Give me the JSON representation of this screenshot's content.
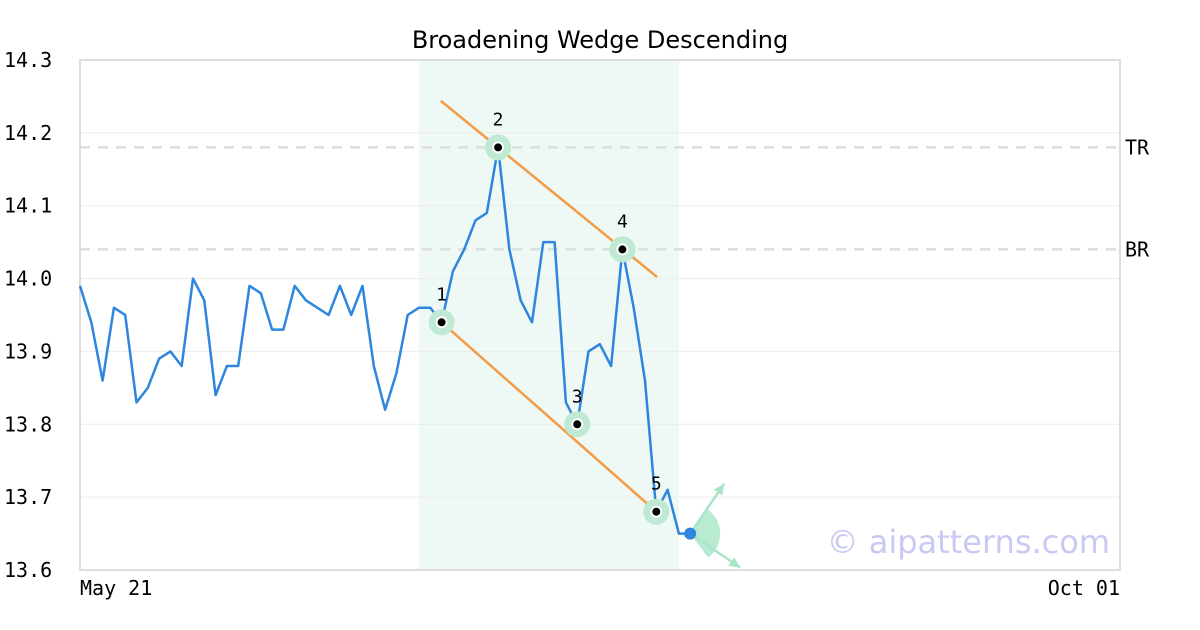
{
  "chart_data": {
    "type": "line",
    "title": "Broadening Wedge Descending",
    "ylim": [
      13.6,
      14.3
    ],
    "y_ticks": [
      "14.3",
      "14.2",
      "14.1",
      "14.0",
      "13.9",
      "13.8",
      "13.7",
      "13.6"
    ],
    "x_tick_labels": [
      "May 21",
      "Oct 01"
    ],
    "grid": true,
    "series": [
      {
        "color": "#2e86de",
        "values": [
          13.99,
          13.94,
          13.86,
          13.96,
          13.95,
          13.83,
          13.85,
          13.89,
          13.9,
          13.88,
          14.0,
          13.97,
          13.84,
          13.88,
          13.88,
          13.99,
          13.98,
          13.93,
          13.93,
          13.99,
          13.97,
          13.96,
          13.95,
          13.99,
          13.95,
          13.99,
          13.88,
          13.82,
          13.87,
          13.95,
          13.96,
          13.96,
          13.94,
          14.01,
          14.04,
          14.08,
          14.09,
          14.18,
          14.04,
          13.97,
          13.94,
          14.05,
          14.05,
          13.83,
          13.8,
          13.9,
          13.91,
          13.88,
          14.04,
          13.96,
          13.86,
          13.68,
          13.71,
          13.65,
          13.65
        ]
      }
    ],
    "reference_lines": [
      {
        "label": "TR",
        "value": 14.18
      },
      {
        "label": "BR",
        "value": 14.04
      }
    ],
    "pattern_points": [
      {
        "label": "1",
        "index": 32,
        "value": 13.94
      },
      {
        "label": "2",
        "index": 37,
        "value": 14.18
      },
      {
        "label": "3",
        "index": 44,
        "value": 13.8
      },
      {
        "label": "4",
        "index": 48,
        "value": 14.04
      },
      {
        "label": "5",
        "index": 51,
        "value": 13.68
      }
    ],
    "trend_lines": [
      {
        "name": "upper",
        "from": {
          "index": 32,
          "value": 14.243
        },
        "to": {
          "index": 51,
          "value": 14.003
        }
      },
      {
        "name": "lower",
        "from": {
          "index": 32,
          "value": 13.94
        },
        "to": {
          "index": 51,
          "value": 13.68
        }
      }
    ],
    "pattern_region": {
      "from_index": 30,
      "to_index": 53
    },
    "current_point": {
      "index": 54,
      "value": 13.65
    },
    "colors": {
      "line": "#2e86de",
      "trend": "#f39c44",
      "highlight": "#eef8f4",
      "marker_halo": "#bfe9d3",
      "arrow": "#a8e6c8",
      "refline": "#dddddd"
    }
  },
  "watermark": "© aipatterns.com"
}
